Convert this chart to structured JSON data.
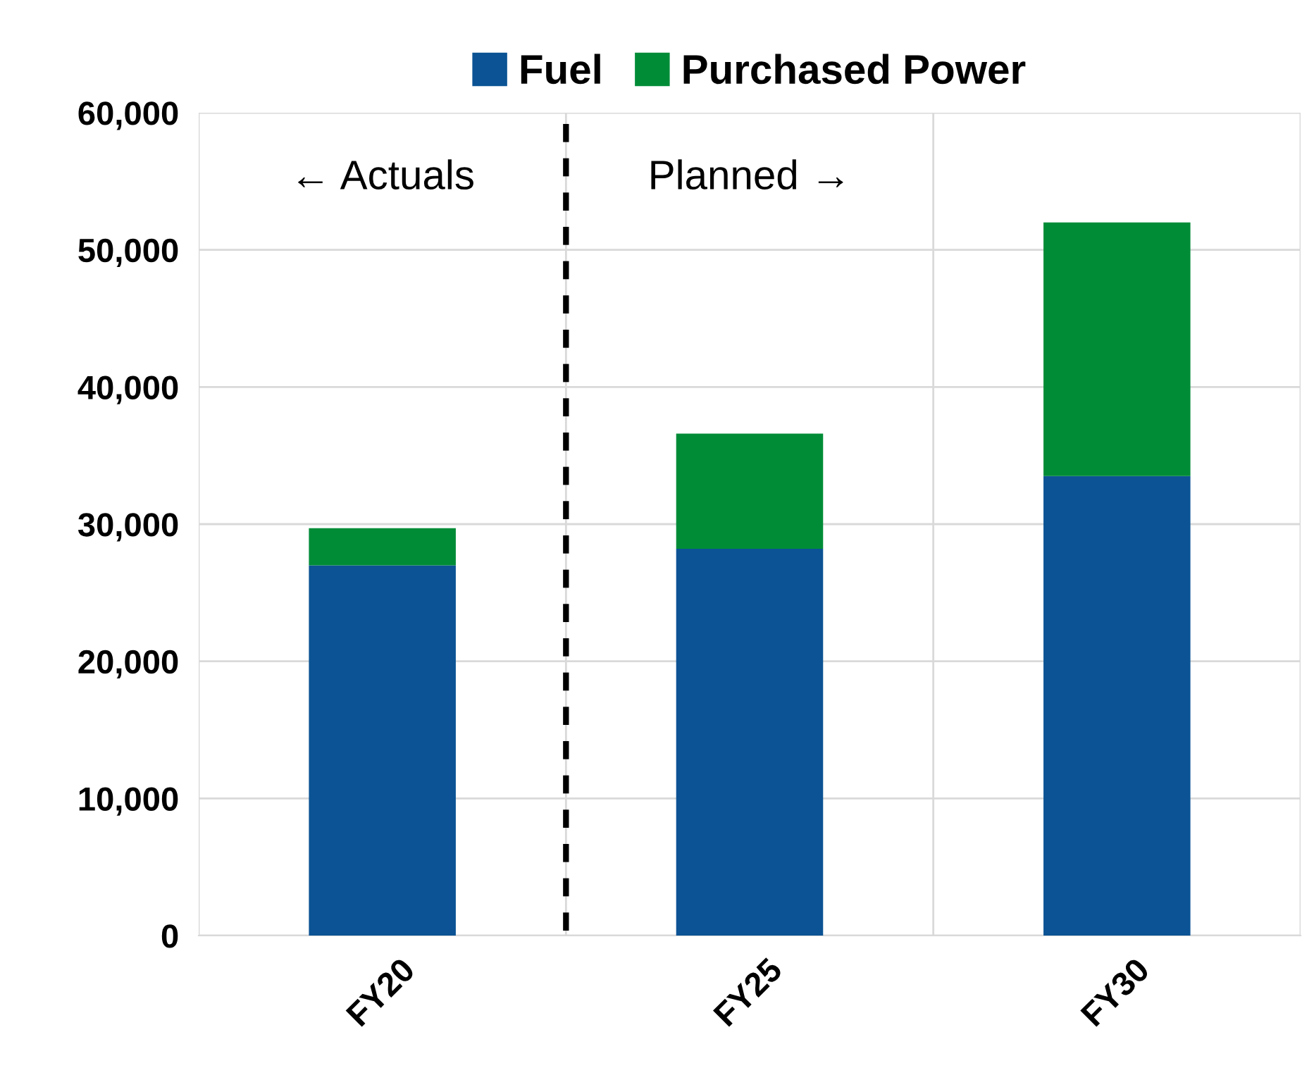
{
  "chart_data": {
    "type": "bar",
    "stacked": true,
    "categories": [
      "FY20",
      "FY25",
      "FY30"
    ],
    "series": [
      {
        "name": "Fuel",
        "color": "#0b5394",
        "values": [
          27000,
          28200,
          33500
        ]
      },
      {
        "name": "Purchased Power",
        "color": "#008c37",
        "values": [
          2700,
          8400,
          18500
        ]
      }
    ],
    "ylim": [
      0,
      60000
    ],
    "yticks": [
      {
        "value": 0,
        "label": "0"
      },
      {
        "value": 10000,
        "label": "10,000"
      },
      {
        "value": 20000,
        "label": "20,000"
      },
      {
        "value": 30000,
        "label": "30,000"
      },
      {
        "value": 40000,
        "label": "40,000"
      },
      {
        "value": 50000,
        "label": "50,000"
      },
      {
        "value": 60000,
        "label": "60,000"
      }
    ],
    "grid": true,
    "legend": "top",
    "annotations": [
      "← Actuals",
      "Planned →"
    ]
  }
}
